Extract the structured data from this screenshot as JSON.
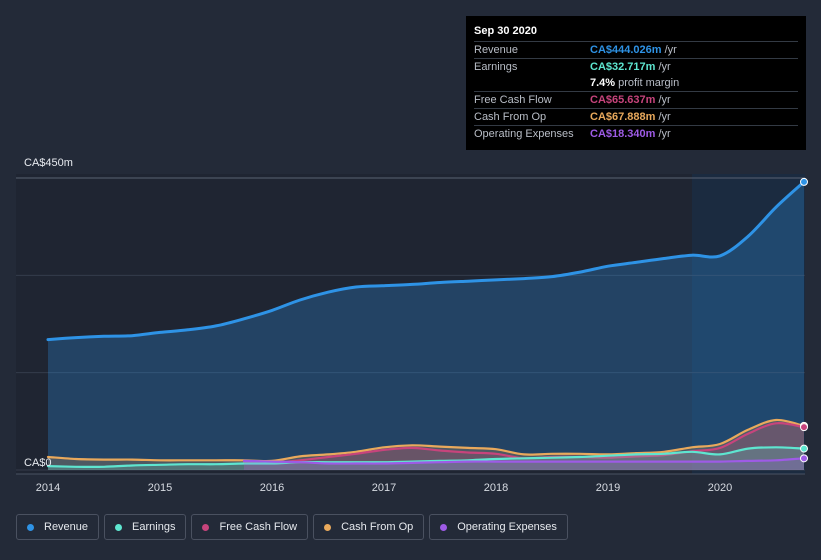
{
  "chart_data": {
    "type": "area",
    "y_axis": {
      "max_label": "CA$450m",
      "min_label": "CA$0",
      "ylim": [
        0,
        450
      ]
    },
    "x_ticks": [
      "2014",
      "2015",
      "2016",
      "2017",
      "2018",
      "2019",
      "2020"
    ],
    "x_range": [
      2014.0,
      2020.75
    ],
    "highlight_start": 2019.75,
    "series": [
      {
        "name": "Revenue",
        "color": "#2e93e6",
        "points": [
          [
            2014.0,
            201
          ],
          [
            2014.25,
            204
          ],
          [
            2014.5,
            206
          ],
          [
            2014.75,
            207
          ],
          [
            2015.0,
            212
          ],
          [
            2015.25,
            216
          ],
          [
            2015.5,
            222
          ],
          [
            2015.75,
            233
          ],
          [
            2016.0,
            246
          ],
          [
            2016.25,
            262
          ],
          [
            2016.5,
            274
          ],
          [
            2016.75,
            282
          ],
          [
            2017.0,
            284
          ],
          [
            2017.25,
            286
          ],
          [
            2017.5,
            289
          ],
          [
            2017.75,
            291
          ],
          [
            2018.0,
            293
          ],
          [
            2018.25,
            295
          ],
          [
            2018.5,
            298
          ],
          [
            2018.75,
            305
          ],
          [
            2019.0,
            314
          ],
          [
            2019.25,
            320
          ],
          [
            2019.5,
            326
          ],
          [
            2019.75,
            331
          ],
          [
            2020.0,
            330
          ],
          [
            2020.25,
            360
          ],
          [
            2020.5,
            405
          ],
          [
            2020.75,
            444
          ]
        ]
      },
      {
        "name": "Cash From Op",
        "color": "#e9a95c",
        "points": [
          [
            2014.0,
            20
          ],
          [
            2014.25,
            17
          ],
          [
            2014.5,
            16
          ],
          [
            2014.75,
            16
          ],
          [
            2015.0,
            15
          ],
          [
            2015.25,
            15
          ],
          [
            2015.5,
            15
          ],
          [
            2015.75,
            15
          ],
          [
            2016.0,
            14
          ],
          [
            2016.25,
            21
          ],
          [
            2016.5,
            24
          ],
          [
            2016.75,
            28
          ],
          [
            2017.0,
            35
          ],
          [
            2017.25,
            38
          ],
          [
            2017.5,
            36
          ],
          [
            2017.75,
            34
          ],
          [
            2018.0,
            32
          ],
          [
            2018.25,
            24
          ],
          [
            2018.5,
            25
          ],
          [
            2018.75,
            25
          ],
          [
            2019.0,
            24
          ],
          [
            2019.25,
            26
          ],
          [
            2019.5,
            28
          ],
          [
            2019.75,
            35
          ],
          [
            2020.0,
            40
          ],
          [
            2020.25,
            62
          ],
          [
            2020.5,
            77
          ],
          [
            2020.75,
            68
          ]
        ]
      },
      {
        "name": "Free Cash Flow",
        "color": "#c7447c",
        "points": [
          [
            2015.75,
            12
          ],
          [
            2016.0,
            11
          ],
          [
            2016.25,
            15
          ],
          [
            2016.5,
            20
          ],
          [
            2016.75,
            25
          ],
          [
            2017.0,
            31
          ],
          [
            2017.25,
            34
          ],
          [
            2017.5,
            30
          ],
          [
            2017.75,
            27
          ],
          [
            2018.0,
            25
          ],
          [
            2018.25,
            18
          ],
          [
            2018.5,
            20
          ],
          [
            2018.75,
            20
          ],
          [
            2019.0,
            19
          ],
          [
            2019.25,
            21
          ],
          [
            2019.5,
            23
          ],
          [
            2019.75,
            29
          ],
          [
            2020.0,
            34
          ],
          [
            2020.25,
            56
          ],
          [
            2020.5,
            72
          ],
          [
            2020.75,
            66
          ]
        ]
      },
      {
        "name": "Earnings",
        "color": "#5ee6d0",
        "points": [
          [
            2014.0,
            6
          ],
          [
            2014.25,
            5
          ],
          [
            2014.5,
            5
          ],
          [
            2014.75,
            7
          ],
          [
            2015.0,
            8
          ],
          [
            2015.25,
            9
          ],
          [
            2015.5,
            9
          ],
          [
            2015.75,
            10
          ],
          [
            2016.0,
            10
          ],
          [
            2016.25,
            12
          ],
          [
            2016.5,
            12
          ],
          [
            2016.75,
            12
          ],
          [
            2017.0,
            12
          ],
          [
            2017.25,
            13
          ],
          [
            2017.5,
            14
          ],
          [
            2017.75,
            15
          ],
          [
            2018.0,
            17
          ],
          [
            2018.25,
            18
          ],
          [
            2018.5,
            19
          ],
          [
            2018.75,
            20
          ],
          [
            2019.0,
            22
          ],
          [
            2019.25,
            24
          ],
          [
            2019.5,
            25
          ],
          [
            2019.75,
            28
          ],
          [
            2020.0,
            24
          ],
          [
            2020.25,
            33
          ],
          [
            2020.5,
            35
          ],
          [
            2020.75,
            33
          ]
        ]
      },
      {
        "name": "Operating Expenses",
        "color": "#9e5be6",
        "points": [
          [
            2015.75,
            14
          ],
          [
            2016.0,
            13
          ],
          [
            2016.25,
            12
          ],
          [
            2016.5,
            10
          ],
          [
            2016.75,
            10
          ],
          [
            2017.0,
            10
          ],
          [
            2017.25,
            11
          ],
          [
            2017.5,
            12
          ],
          [
            2017.75,
            13
          ],
          [
            2018.0,
            13
          ],
          [
            2018.25,
            13
          ],
          [
            2018.5,
            13
          ],
          [
            2018.75,
            13
          ],
          [
            2019.0,
            13
          ],
          [
            2019.25,
            13
          ],
          [
            2019.5,
            13
          ],
          [
            2019.75,
            13
          ],
          [
            2020.0,
            13
          ],
          [
            2020.25,
            14
          ],
          [
            2020.5,
            15
          ],
          [
            2020.75,
            18
          ]
        ]
      }
    ]
  },
  "tooltip": {
    "date": "Sep 30 2020",
    "rows": [
      {
        "label": "Revenue",
        "value": "CA$444.026m",
        "unit": "/yr",
        "color": "#2e93e6"
      },
      {
        "label": "Earnings",
        "value": "CA$32.717m",
        "unit": "/yr",
        "color": "#5ee6d0"
      },
      {
        "label": "Free Cash Flow",
        "value": "CA$65.637m",
        "unit": "/yr",
        "color": "#c7447c"
      },
      {
        "label": "Cash From Op",
        "value": "CA$67.888m",
        "unit": "/yr",
        "color": "#e9a95c"
      },
      {
        "label": "Operating Expenses",
        "value": "CA$18.340m",
        "unit": "/yr",
        "color": "#9e5be6"
      }
    ],
    "margin_value": "7.4%",
    "margin_text": "profit margin"
  },
  "legend": [
    {
      "label": "Revenue",
      "color": "#2e93e6"
    },
    {
      "label": "Earnings",
      "color": "#5ee6d0"
    },
    {
      "label": "Free Cash Flow",
      "color": "#c7447c"
    },
    {
      "label": "Cash From Op",
      "color": "#e9a95c"
    },
    {
      "label": "Operating Expenses",
      "color": "#9e5be6"
    }
  ]
}
